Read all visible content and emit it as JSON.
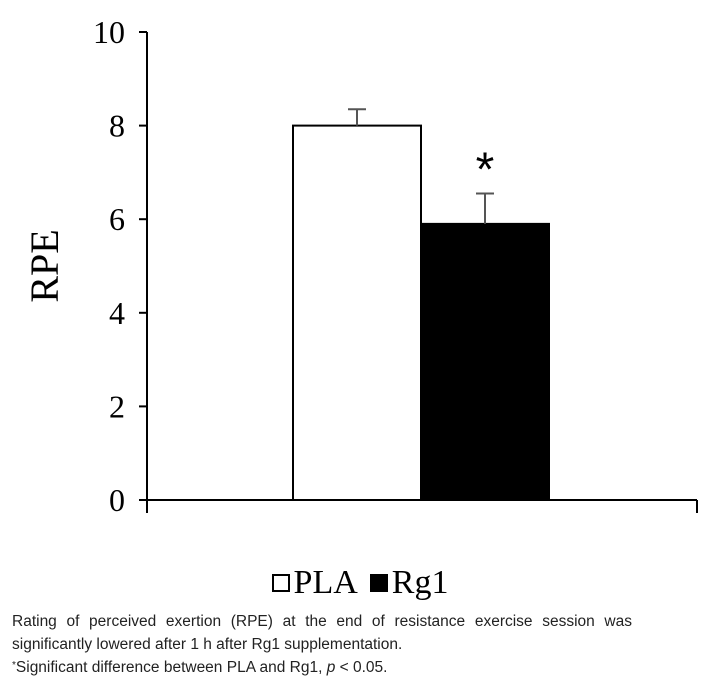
{
  "chart_data": {
    "type": "bar",
    "title": "",
    "xlabel": "",
    "ylabel": "RPE",
    "ylim": [
      0,
      10
    ],
    "yticks": [
      0,
      2,
      4,
      6,
      8,
      10
    ],
    "grid": false,
    "legend_position": "bottom",
    "series": [
      {
        "name": "PLA",
        "value": 8.0,
        "error": 0.35,
        "color": "#ffffff",
        "significance": ""
      },
      {
        "name": "Rg1",
        "value": 5.9,
        "error": 0.65,
        "color": "#000000",
        "significance": "*"
      }
    ]
  },
  "caption": {
    "line1": "Rating of perceived exertion (RPE) at the end of resistance exercise session was significantly lowered after 1 h after Rg1 supplementation.",
    "footnote_mark": "*",
    "footnote_text": "Significant difference between PLA and Rg1, ",
    "footnote_p": "p",
    "footnote_end": " < 0.05."
  }
}
